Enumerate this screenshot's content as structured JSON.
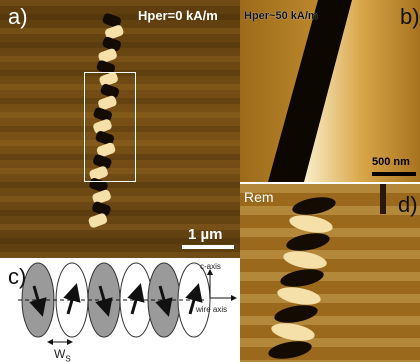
{
  "panel_a": {
    "label": "a)",
    "field": "Hper=0 kA/m",
    "scale": "1 µm"
  },
  "panel_b": {
    "label": "b)",
    "field": "Hper~50 kA/m",
    "scale": "500 nm"
  },
  "panel_c": {
    "label": "c)",
    "c_axis": "c-axis",
    "wire_axis": "wire axis",
    "width_symbol": "W",
    "width_subscript": "S"
  },
  "panel_d": {
    "label": "d)",
    "field": "Rem"
  },
  "colors": {
    "mfm_base": "#6e4a12",
    "mfm_light": "#f4e0a8",
    "mfm_dark": "#140c02",
    "disk_grey": "#9a9a9a"
  }
}
